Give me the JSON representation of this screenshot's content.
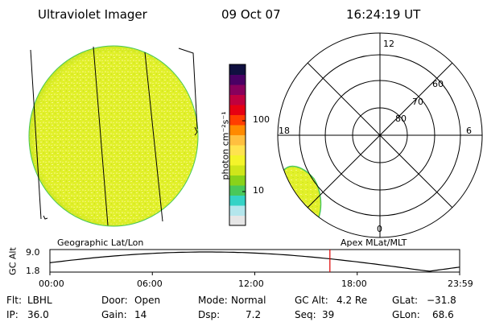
{
  "header": {
    "instrument": "Ultraviolet Imager",
    "date": "09 Oct 07",
    "time": "16:24:19 UT"
  },
  "colorbar": {
    "unit": "photon cm⁻²s⁻¹",
    "tick_100": "100",
    "tick_10": "10",
    "colors": [
      "#e6e6e6",
      "#b4e6ec",
      "#35d3c6",
      "#49c85a",
      "#89d21a",
      "#cfe61a",
      "#f4f42a",
      "#ffe34f",
      "#ffbf3f",
      "#ff8a00",
      "#ff3d00",
      "#e60012",
      "#c0003e",
      "#88005c",
      "#4a0064",
      "#101040"
    ]
  },
  "polar": {
    "label_12": "12",
    "label_18": "18",
    "label_6": "6",
    "label_0": "0",
    "lat_60": "60",
    "lat_70": "70",
    "lat_80": "80"
  },
  "timeline": {
    "left_label": "Geographic Lat/Lon",
    "right_label": "Apex MLat/MLT",
    "ylabel": "GC Alt",
    "ymax": "9.0",
    "ymin": "1.8",
    "ticks": [
      "00:00",
      "06:00",
      "12:00",
      "18:00",
      "23:59"
    ],
    "current_hour": 16.4
  },
  "info": {
    "flt_label": "Flt:",
    "flt_value": "LBHL",
    "ip_label": "IP:",
    "ip_value": "36.0",
    "door_label": "Door:",
    "door_value": "Open",
    "gain_label": "Gain:",
    "gain_value": "14",
    "mode_label": "Mode:",
    "mode_value": "Normal",
    "dsp_label": "Dsp:",
    "dsp_value": "7.2",
    "gcalt_label": "GC Alt:",
    "gcalt_value": "4.2 Re",
    "seq_label": "Seq:",
    "seq_value": "39",
    "glat_label": "GLat:",
    "glat_value": "−31.8",
    "glon_label": "GLon:",
    "glon_value": "68.6"
  }
}
